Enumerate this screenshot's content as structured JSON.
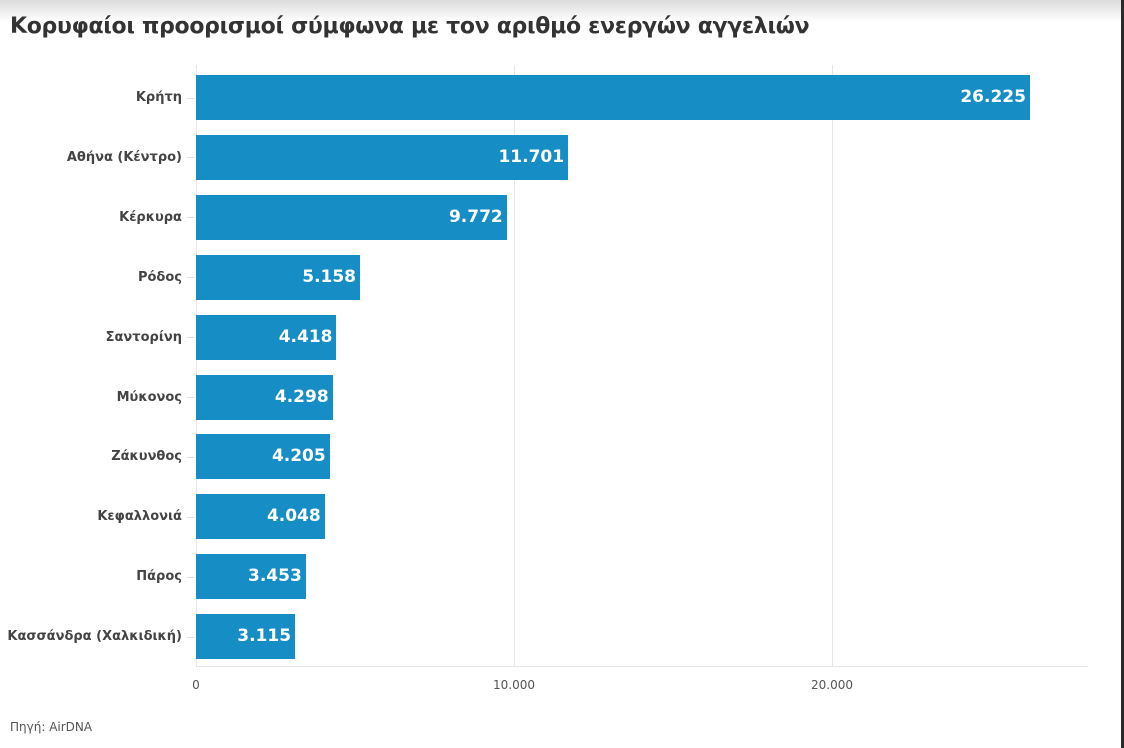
{
  "title": "Κορυφαίοι προορισμοί σύμφωνα με τον αριθμό ενεργών αγγελιών",
  "source": "Πηγή: AirDNA",
  "colors": {
    "bar": "#178dc6",
    "grid": "#e6e6e6",
    "label": "#444444"
  },
  "chart_data": {
    "type": "bar",
    "orientation": "horizontal",
    "title": "Κορυφαίοι προορισμοί σύμφωνα με τον αριθμό ενεργών αγγελιών",
    "categories": [
      "Κρήτη",
      "Αθήνα (Κέντρο)",
      "Κέρκυρα",
      "Ρόδος",
      "Σαντορίνη",
      "Μύκονος",
      "Ζάκυνθος",
      "Κεφαλλονιά",
      "Πάρος",
      "Κασσάνδρα (Χαλκιδική)"
    ],
    "values": [
      26225,
      11701,
      9772,
      5158,
      4418,
      4298,
      4205,
      4048,
      3453,
      3115
    ],
    "value_labels": [
      "26.225",
      "11.701",
      "9.772",
      "5.158",
      "4.418",
      "4.298",
      "4.205",
      "4.048",
      "3.453",
      "3.115"
    ],
    "xlabel": "",
    "ylabel": "",
    "xlim": [
      0,
      28000
    ],
    "x_ticks": [
      0,
      10000,
      20000
    ],
    "x_tick_labels": [
      "0",
      "10.000",
      "20.000"
    ],
    "grid": true,
    "legend": null,
    "source": "Πηγή: AirDNA"
  }
}
